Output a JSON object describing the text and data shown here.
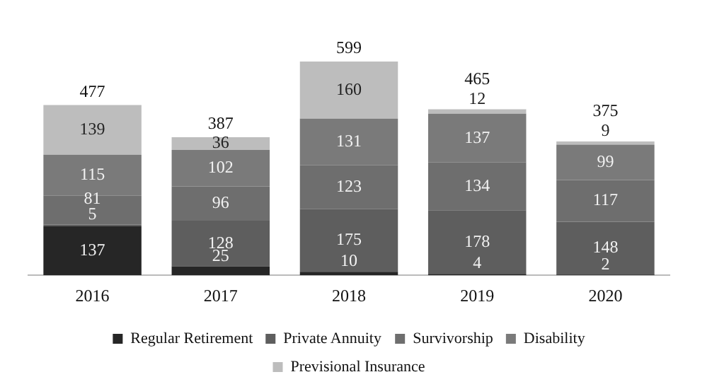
{
  "chart_data": {
    "type": "bar",
    "stacked": true,
    "categories": [
      "2016",
      "2017",
      "2018",
      "2019",
      "2020"
    ],
    "series": [
      {
        "name": "Regular Retirement",
        "color": "#262626",
        "values": [
          137,
          25,
          10,
          4,
          2
        ]
      },
      {
        "name": "Private Annuity",
        "color": "#5e5e5e",
        "values": [
          5,
          128,
          175,
          178,
          148
        ]
      },
      {
        "name": "Survivorship",
        "color": "#6e6e6e",
        "values": [
          81,
          96,
          123,
          134,
          117
        ]
      },
      {
        "name": "Disability",
        "color": "#7a7a7a",
        "values": [
          115,
          102,
          131,
          137,
          99
        ]
      },
      {
        "name": "Previsional Insurance",
        "color": "#bdbdbd",
        "values": [
          139,
          36,
          160,
          12,
          9
        ]
      }
    ],
    "totals": [
      "477",
      "387",
      "599",
      "465",
      "375"
    ],
    "data_labels": true,
    "legend": "bottom",
    "grid": false,
    "tick_labels": "x"
  }
}
